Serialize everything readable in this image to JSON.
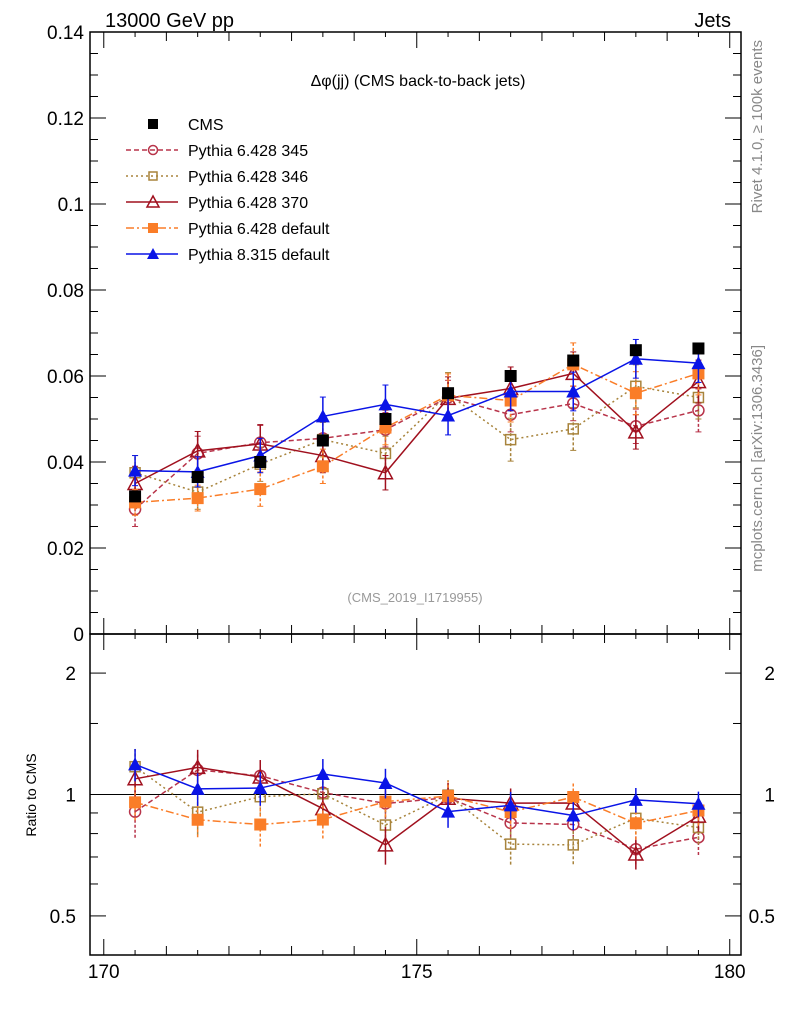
{
  "header": {
    "left": "13000 GeV pp",
    "right": "Jets"
  },
  "side": {
    "rivet": "Rivet 4.1.0, ≥ 100k events",
    "mcplots": "mcplots.cern.ch [arXiv:1306.3436]"
  },
  "analysis_id": "(CMS_2019_I1719955)",
  "chart_data": {
    "type": "line",
    "title": "Δφ(jj) (CMS back-to-back jets)",
    "xlabel": "",
    "ylabel": "",
    "xlim": [
      169.78,
      180.18
    ],
    "ylim": [
      0,
      0.14
    ],
    "xticks": [
      "170",
      "175",
      "180"
    ],
    "yticks": [
      "0",
      "0.02",
      "0.04",
      "0.06",
      "0.08",
      "0.1",
      "0.12",
      "0.14"
    ],
    "x": [
      170.5,
      171.5,
      172.5,
      173.5,
      174.5,
      175.5,
      176.5,
      177.5,
      178.5,
      179.5
    ],
    "legend_position": "top-left",
    "series": [
      {
        "name": "CMS",
        "color": "#000000",
        "marker": "filled-square",
        "dash": "none",
        "values": [
          0.032,
          0.0365,
          0.04,
          0.045,
          0.05,
          0.056,
          0.06,
          0.0636,
          0.066,
          0.0664
        ],
        "errors": [
          0.001,
          0.001,
          0.001,
          0.001,
          0.001,
          0.001,
          0.001,
          0.001,
          0.001,
          0.001
        ]
      },
      {
        "name": "Pythia 6.428 345",
        "color": "#b8344a",
        "marker": "open-circle",
        "dash": "5,3",
        "values": [
          0.029,
          0.042,
          0.0445,
          0.0455,
          0.0475,
          0.055,
          0.051,
          0.0536,
          0.0483,
          0.052
        ],
        "errors": [
          0.004,
          0.004,
          0.004,
          0.004,
          0.004,
          0.004,
          0.004,
          0.004,
          0.004,
          0.005
        ]
      },
      {
        "name": "Pythia 6.428 346",
        "color": "#a8843c",
        "marker": "open-square",
        "dash": "2,3",
        "values": [
          0.0375,
          0.033,
          0.0395,
          0.0452,
          0.042,
          0.0558,
          0.0452,
          0.0477,
          0.0576,
          0.055
        ],
        "errors": [
          0.004,
          0.004,
          0.004,
          0.004,
          0.004,
          0.005,
          0.005,
          0.005,
          0.005,
          0.005
        ]
      },
      {
        "name": "Pythia 6.428 370",
        "color": "#a0101e",
        "marker": "open-triangle",
        "dash": "none",
        "values": [
          0.035,
          0.0426,
          0.0442,
          0.0415,
          0.0375,
          0.0548,
          0.0571,
          0.0606,
          0.047,
          0.0587
        ],
        "errors": [
          0.004,
          0.0045,
          0.0045,
          0.004,
          0.004,
          0.005,
          0.005,
          0.005,
          0.004,
          0.005
        ]
      },
      {
        "name": "Pythia 6.428 default",
        "color": "#fa7d28",
        "marker": "filled-square",
        "dash": "8,3,2,3",
        "values": [
          0.0306,
          0.0316,
          0.0337,
          0.039,
          0.048,
          0.0555,
          0.0543,
          0.0627,
          0.056,
          0.0606
        ],
        "errors": [
          0.003,
          0.003,
          0.004,
          0.004,
          0.004,
          0.005,
          0.005,
          0.005,
          0.005,
          0.005
        ]
      },
      {
        "name": "Pythia 8.315 default",
        "color": "#0a14e6",
        "marker": "filled-triangle",
        "dash": "none",
        "values": [
          0.038,
          0.0377,
          0.0415,
          0.0506,
          0.0534,
          0.0508,
          0.0564,
          0.0564,
          0.064,
          0.063
        ],
        "errors": [
          0.0035,
          0.0035,
          0.004,
          0.0045,
          0.0045,
          0.0045,
          0.0045,
          0.0045,
          0.0045,
          0.0045
        ]
      }
    ],
    "ratio": {
      "ylabel": "Ratio to CMS",
      "scale": "log",
      "ylim": [
        0.4,
        2.5
      ],
      "yticks": [
        "0.5",
        "1",
        "2"
      ],
      "reference": "CMS"
    }
  }
}
